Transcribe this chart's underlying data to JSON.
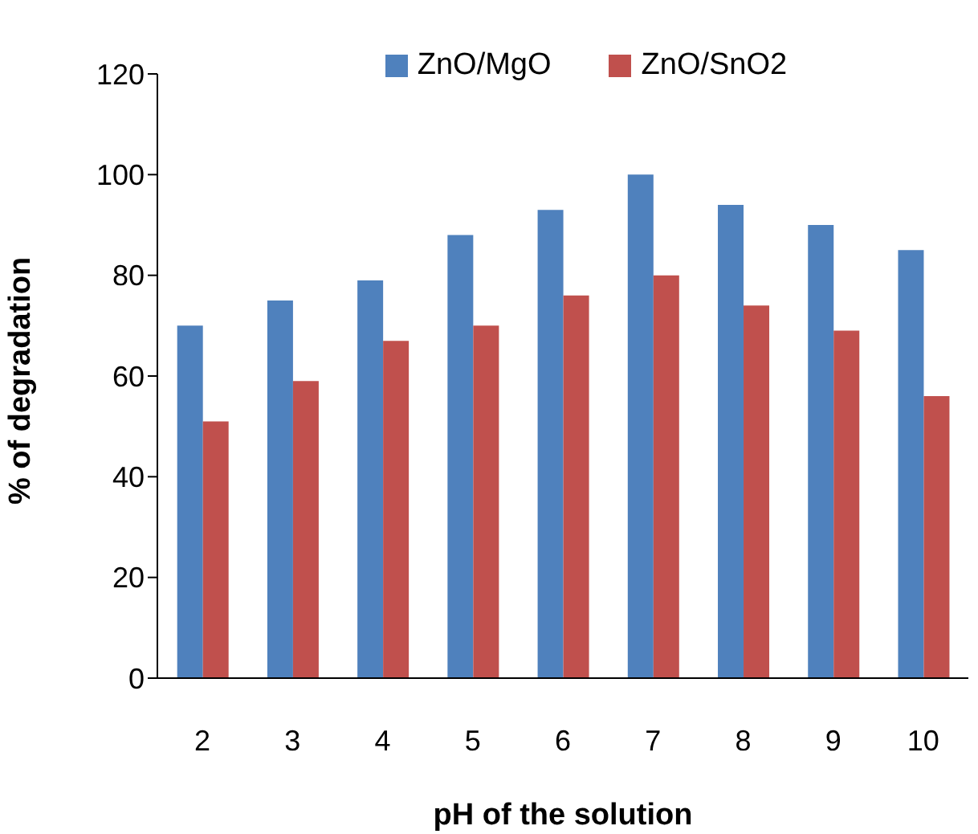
{
  "chart_data": {
    "type": "bar",
    "xlabel": "pH of the solution",
    "ylabel": "% of degradation",
    "categories": [
      "2",
      "3",
      "4",
      "5",
      "6",
      "7",
      "8",
      "9",
      "10"
    ],
    "series": [
      {
        "name": "ZnO/MgO",
        "color": "#4f81bd",
        "values": [
          70,
          75,
          79,
          88,
          93,
          100,
          94,
          90,
          85
        ]
      },
      {
        "name": "ZnO/SnO2",
        "color": "#c0504d",
        "values": [
          51,
          59,
          67,
          70,
          76,
          80,
          74,
          69,
          56
        ]
      }
    ],
    "ylim": [
      0,
      120
    ],
    "yticks": [
      0,
      20,
      40,
      60,
      80,
      100,
      120
    ],
    "grid": false,
    "legend": "top"
  }
}
